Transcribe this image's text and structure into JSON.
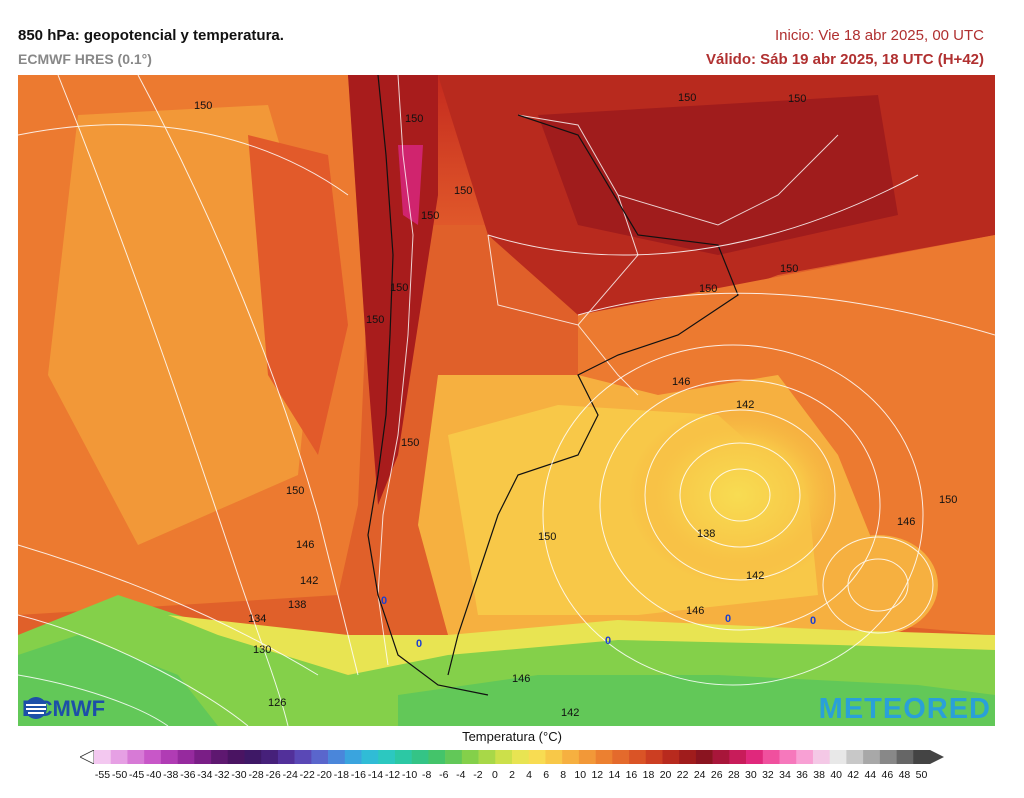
{
  "header": {
    "title": "850 hPa: geopotencial y temperatura.",
    "model": "ECMWF HRES (0.1°)",
    "init": "Inicio: Vie 18 abr 2025, 00 UTC",
    "valid": "Válido: Sáb 19 abr 2025, 18 UTC (H+42)"
  },
  "map": {
    "contour_labels": [
      {
        "text": "150"
      },
      {
        "text": "150"
      },
      {
        "text": "150"
      },
      {
        "text": "150"
      },
      {
        "text": "150"
      },
      {
        "text": "150"
      },
      {
        "text": "150"
      },
      {
        "text": "150"
      },
      {
        "text": "150"
      },
      {
        "text": "150"
      },
      {
        "text": "150"
      },
      {
        "text": "150"
      },
      {
        "text": "146"
      },
      {
        "text": "142"
      },
      {
        "text": "150"
      },
      {
        "text": "150"
      },
      {
        "text": "146"
      },
      {
        "text": "138"
      },
      {
        "text": "146"
      },
      {
        "text": "142"
      },
      {
        "text": "142"
      },
      {
        "text": "138"
      },
      {
        "text": "134"
      },
      {
        "text": "130"
      },
      {
        "text": "146"
      },
      {
        "text": "146"
      },
      {
        "text": "126"
      },
      {
        "text": "142"
      }
    ],
    "zero_labels": [
      "0",
      "0",
      "0",
      "0",
      "0"
    ],
    "logo_left": "ECMWF",
    "logo_right": "METEORED"
  },
  "legend": {
    "title": "Temperatura (°C)",
    "ticks": [
      "-55",
      "-50",
      "-45",
      "-40",
      "-38",
      "-36",
      "-34",
      "-32",
      "-30",
      "-28",
      "-26",
      "-24",
      "-22",
      "-20",
      "-18",
      "-16",
      "-14",
      "-12",
      "-10",
      "-8",
      "-6",
      "-4",
      "-2",
      "0",
      "2",
      "4",
      "6",
      "8",
      "10",
      "12",
      "14",
      "16",
      "18",
      "20",
      "22",
      "24",
      "26",
      "28",
      "30",
      "32",
      "34",
      "36",
      "38",
      "40",
      "42",
      "44",
      "46",
      "48",
      "50"
    ],
    "colors": [
      "#f3c8f0",
      "#e6a0e4",
      "#d77ad6",
      "#c857c8",
      "#b03cb4",
      "#962a9e",
      "#7a1e86",
      "#5e1870",
      "#4a1462",
      "#3e1866",
      "#46207a",
      "#52309a",
      "#5a48b6",
      "#5a66cc",
      "#4a86da",
      "#3aa4de",
      "#30bcd6",
      "#2cc8c0",
      "#2cc8a4",
      "#34c486",
      "#44c46a",
      "#62c858",
      "#84d04a",
      "#a8d848",
      "#cce04a",
      "#e8e452",
      "#f8dc52",
      "#f8c848",
      "#f6b040",
      "#f29838",
      "#ec8030",
      "#e46a2c",
      "#da5426",
      "#cc3e22",
      "#b82a1e",
      "#a01c1c",
      "#8a1420",
      "#a8163a",
      "#c81c5a",
      "#e0287c",
      "#f0509e",
      "#f678bc",
      "#f8a0d4",
      "#f4c8e6",
      "#e8e8e8",
      "#c8c8c8",
      "#a8a8a8",
      "#888888",
      "#666666",
      "#444444"
    ]
  }
}
